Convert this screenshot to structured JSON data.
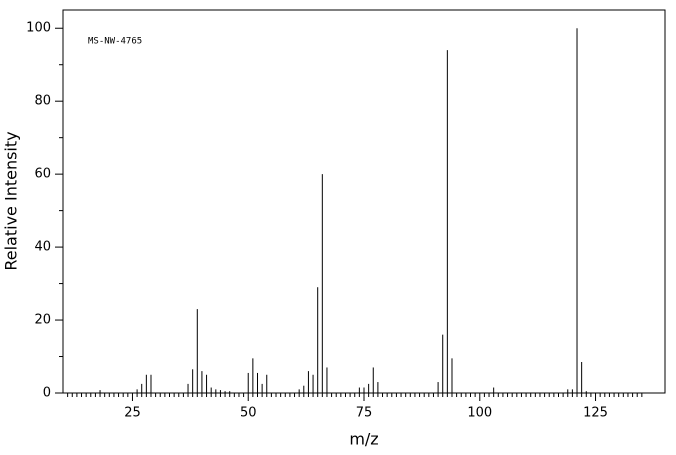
{
  "chart_data": {
    "type": "stem",
    "annotation": "MS-NW-4765",
    "x_label": "m/z",
    "y_label": "Relative Intensity",
    "x": [
      18,
      26,
      27,
      28,
      29,
      37,
      38,
      39,
      40,
      41,
      42,
      43,
      44,
      45,
      46,
      50,
      51,
      52,
      53,
      54,
      61,
      62,
      63,
      64,
      65,
      66,
      67,
      74,
      75,
      76,
      77,
      78,
      91,
      92,
      93,
      94,
      103,
      119,
      120,
      121,
      122,
      123
    ],
    "values": [
      0.8,
      1,
      2.5,
      5,
      5,
      2.5,
      6.5,
      23,
      6,
      5,
      1.5,
      1,
      0.8,
      0.5,
      0.5,
      5.5,
      9.5,
      5.5,
      2.5,
      5,
      1,
      2,
      6,
      5,
      29,
      60,
      7,
      1.5,
      1.5,
      2.5,
      7,
      3,
      3,
      16,
      94,
      9.5,
      1.5,
      1,
      1,
      100,
      8.5,
      0.5
    ],
    "color": "#000000",
    "xlim": [
      10,
      140
    ],
    "ylim": [
      0,
      105
    ],
    "xticks": [
      25,
      50,
      75,
      100,
      125
    ],
    "yticks": [
      0,
      20,
      40,
      60,
      80,
      100
    ],
    "xminorticks": [
      11,
      12,
      13,
      14,
      15,
      16,
      17,
      18,
      19,
      20,
      21,
      22,
      23,
      24,
      26,
      27,
      28,
      29,
      30,
      31,
      32,
      33,
      34,
      35,
      36,
      37,
      38,
      39,
      40,
      41,
      42,
      43,
      44,
      45,
      46,
      47,
      48,
      49,
      51,
      52,
      53,
      54,
      55,
      56,
      57,
      58,
      59,
      60,
      61,
      62,
      63,
      64,
      65,
      66,
      67,
      68,
      69,
      70,
      71,
      72,
      73,
      74,
      76,
      77,
      78,
      79,
      80,
      81,
      82,
      83,
      84,
      85,
      86,
      87,
      88,
      89,
      90,
      91,
      92,
      93,
      94,
      95,
      96,
      97,
      98,
      99,
      101,
      102,
      103,
      104,
      105,
      106,
      107,
      108,
      109,
      110,
      111,
      112,
      113,
      114,
      115,
      116,
      117,
      118,
      119,
      120,
      121,
      122,
      123,
      124,
      126,
      127,
      128,
      129,
      130,
      131,
      132,
      133,
      134,
      135
    ],
    "yminorticks": [
      10,
      30,
      50,
      70,
      90
    ]
  }
}
